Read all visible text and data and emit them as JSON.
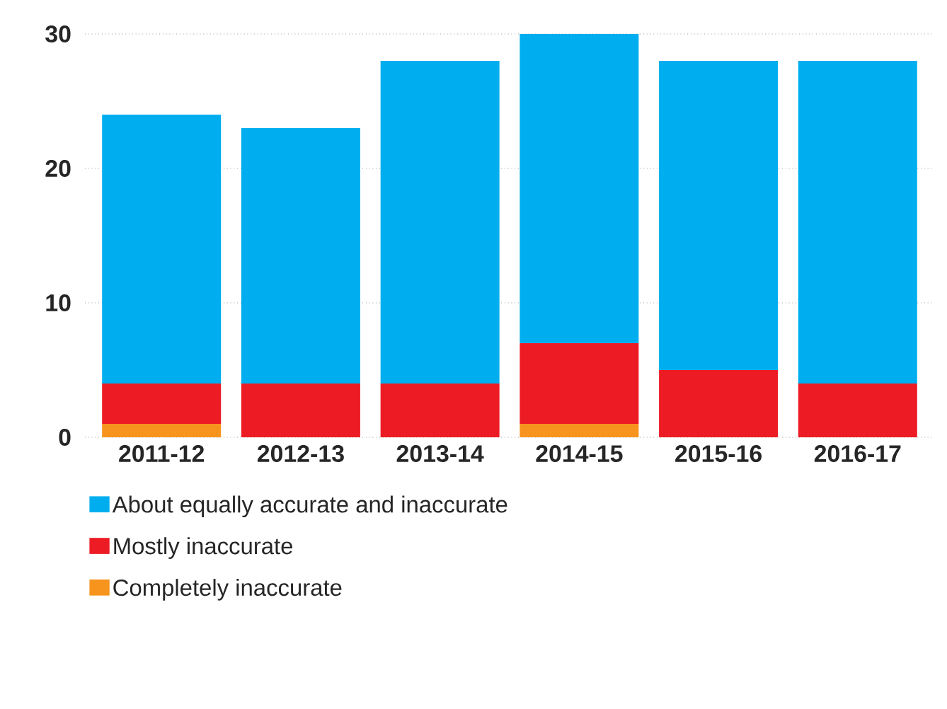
{
  "chart_data": {
    "type": "bar",
    "stacked": true,
    "categories": [
      "2011-12",
      "2012-13",
      "2013-14",
      "2014-15",
      "2015-16",
      "2016-17"
    ],
    "series": [
      {
        "name": "Completely inaccurate",
        "color": "#f7941d",
        "values": [
          1,
          0,
          0,
          1,
          0,
          0
        ]
      },
      {
        "name": "Mostly inaccurate",
        "color": "#ed1c24",
        "values": [
          3,
          4,
          4,
          6,
          5,
          4
        ]
      },
      {
        "name": "About equally accurate and inaccurate",
        "color": "#00aeef",
        "values": [
          20,
          19,
          24,
          23,
          23,
          24
        ]
      }
    ],
    "ylim": [
      0,
      30
    ],
    "yticks": [
      0,
      10,
      20,
      30
    ],
    "grid": "y",
    "legend": "bottom"
  }
}
